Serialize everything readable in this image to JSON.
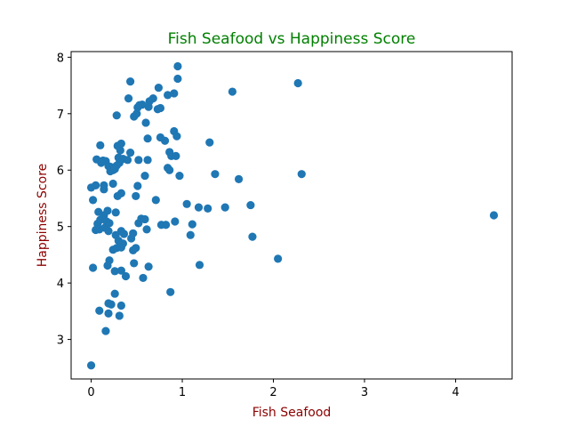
{
  "colors": {
    "title": "#008000",
    "axis_label": "#8b0000",
    "marker": "#1f77b4"
  },
  "chart_data": {
    "type": "scatter",
    "title": "Fish Seafood vs Happiness Score",
    "xlabel": "Fish Seafood",
    "ylabel": "Happiness Score",
    "xlim": [
      -0.22,
      4.62
    ],
    "ylim": [
      2.3,
      8.1
    ],
    "xticks": [
      0,
      1,
      2,
      3,
      4
    ],
    "yticks": [
      3,
      4,
      5,
      6,
      7,
      8
    ],
    "grid": false,
    "series": [
      {
        "points": [
          [
            0.0,
            2.54
          ],
          [
            0.16,
            3.15
          ],
          [
            0.09,
            3.51
          ],
          [
            0.19,
            3.46
          ],
          [
            0.31,
            3.42
          ],
          [
            0.19,
            3.64
          ],
          [
            0.22,
            3.62
          ],
          [
            0.33,
            3.6
          ],
          [
            0.26,
            3.81
          ],
          [
            0.87,
            3.84
          ],
          [
            0.02,
            4.27
          ],
          [
            0.18,
            4.31
          ],
          [
            0.2,
            4.4
          ],
          [
            0.33,
            4.22
          ],
          [
            0.26,
            4.21
          ],
          [
            0.38,
            4.12
          ],
          [
            0.47,
            4.35
          ],
          [
            0.57,
            4.09
          ],
          [
            0.63,
            4.29
          ],
          [
            1.19,
            4.32
          ],
          [
            2.05,
            4.43
          ],
          [
            1.77,
            4.82
          ],
          [
            1.09,
            4.85
          ],
          [
            0.24,
            4.59
          ],
          [
            0.28,
            4.62
          ],
          [
            0.33,
            4.63
          ],
          [
            0.35,
            4.7
          ],
          [
            0.49,
            4.62
          ],
          [
            0.46,
            4.58
          ],
          [
            0.05,
            4.94
          ],
          [
            0.09,
            4.95
          ],
          [
            0.15,
            4.98
          ],
          [
            0.19,
            4.92
          ],
          [
            0.27,
            4.85
          ],
          [
            0.3,
            4.75
          ],
          [
            0.33,
            4.92
          ],
          [
            0.36,
            4.87
          ],
          [
            0.44,
            4.79
          ],
          [
            0.46,
            4.88
          ],
          [
            0.52,
            5.06
          ],
          [
            0.61,
            4.95
          ],
          [
            0.55,
            5.14
          ],
          [
            0.59,
            5.13
          ],
          [
            0.77,
            5.03
          ],
          [
            0.82,
            5.03
          ],
          [
            0.92,
            5.09
          ],
          [
            1.11,
            5.04
          ],
          [
            0.07,
            5.05
          ],
          [
            0.1,
            5.12
          ],
          [
            0.14,
            5.2
          ],
          [
            0.17,
            5.09
          ],
          [
            0.2,
            5.06
          ],
          [
            0.08,
            5.26
          ],
          [
            0.18,
            5.28
          ],
          [
            0.27,
            5.25
          ],
          [
            1.05,
            5.4
          ],
          [
            1.18,
            5.34
          ],
          [
            1.28,
            5.32
          ],
          [
            1.47,
            5.34
          ],
          [
            1.75,
            5.38
          ],
          [
            4.42,
            5.2
          ],
          [
            0.02,
            5.47
          ],
          [
            0.33,
            5.59
          ],
          [
            0.29,
            5.54
          ],
          [
            0.49,
            5.54
          ],
          [
            0.71,
            5.47
          ],
          [
            0.51,
            5.72
          ],
          [
            0.0,
            5.69
          ],
          [
            0.05,
            5.73
          ],
          [
            0.14,
            5.73
          ],
          [
            0.24,
            5.76
          ],
          [
            0.14,
            5.66
          ],
          [
            0.06,
            6.19
          ],
          [
            0.1,
            6.44
          ],
          [
            0.13,
            6.17
          ],
          [
            0.16,
            6.16
          ],
          [
            0.11,
            6.13
          ],
          [
            0.19,
            6.07
          ],
          [
            0.21,
            6.06
          ],
          [
            0.24,
            6.0
          ],
          [
            0.21,
            5.98
          ],
          [
            0.26,
            6.02
          ],
          [
            0.28,
            6.08
          ],
          [
            0.31,
            6.13
          ],
          [
            0.3,
            6.22
          ],
          [
            0.35,
            6.2
          ],
          [
            0.32,
            6.35
          ],
          [
            0.29,
            6.43
          ],
          [
            0.33,
            6.47
          ],
          [
            0.4,
            6.18
          ],
          [
            0.43,
            6.31
          ],
          [
            0.52,
            6.18
          ],
          [
            0.62,
            6.18
          ],
          [
            0.59,
            5.9
          ],
          [
            0.62,
            6.56
          ],
          [
            0.81,
            6.52
          ],
          [
            0.76,
            6.58
          ],
          [
            0.84,
            6.04
          ],
          [
            0.86,
            6.0
          ],
          [
            0.86,
            6.32
          ],
          [
            0.88,
            6.25
          ],
          [
            0.93,
            6.25
          ],
          [
            0.97,
            5.9
          ],
          [
            0.91,
            6.69
          ],
          [
            0.94,
            6.6
          ],
          [
            1.3,
            6.49
          ],
          [
            1.36,
            5.93
          ],
          [
            1.62,
            5.84
          ],
          [
            2.31,
            5.93
          ],
          [
            0.28,
            6.97
          ],
          [
            0.47,
            6.95
          ],
          [
            0.5,
            7.0
          ],
          [
            0.51,
            7.11
          ],
          [
            0.53,
            7.15
          ],
          [
            0.6,
            6.84
          ],
          [
            0.63,
            7.12
          ],
          [
            0.64,
            7.22
          ],
          [
            0.68,
            7.27
          ],
          [
            0.73,
            7.08
          ],
          [
            0.76,
            7.1
          ],
          [
            0.41,
            7.27
          ],
          [
            0.56,
            7.16
          ],
          [
            0.74,
            7.46
          ],
          [
            0.84,
            7.33
          ],
          [
            0.91,
            7.36
          ],
          [
            0.95,
            7.62
          ],
          [
            0.95,
            7.84
          ],
          [
            0.43,
            7.57
          ],
          [
            1.55,
            7.39
          ],
          [
            2.27,
            7.54
          ]
        ]
      }
    ]
  }
}
